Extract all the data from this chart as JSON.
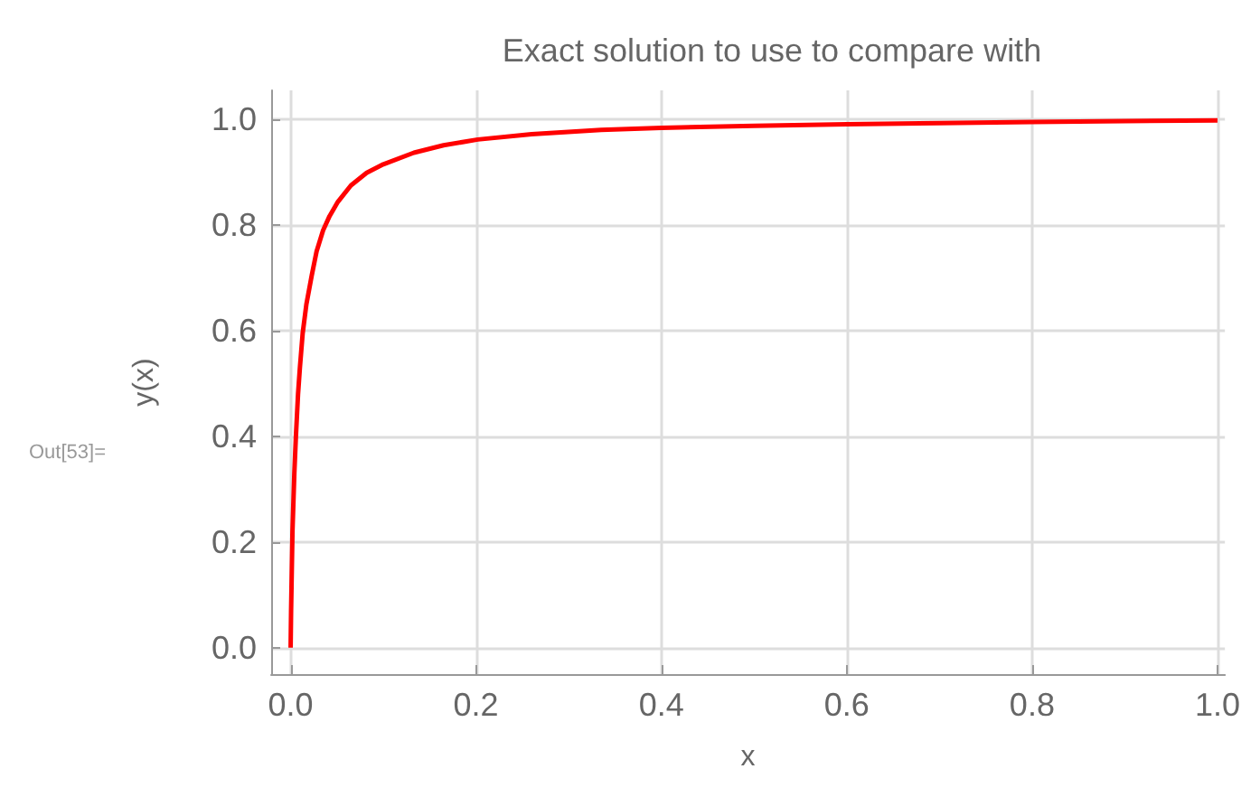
{
  "chart_data": {
    "type": "line",
    "title": "Exact solution to use to compare with",
    "xlabel": "x",
    "ylabel": "y(x)",
    "annotations": [
      "Out[53]="
    ],
    "x": [
      0,
      0.0005,
      0.001,
      0.002,
      0.004,
      0.0057,
      0.008,
      0.01,
      0.013,
      0.017,
      0.0227,
      0.028,
      0.035,
      0.042,
      0.051,
      0.065,
      0.082,
      0.1,
      0.133,
      0.165,
      0.202,
      0.26,
      0.335,
      0.4,
      0.5,
      0.6,
      0.7,
      0.8,
      0.9,
      1.0
    ],
    "series": [
      {
        "color": "#ff0000",
        "values": [
          0,
          0.07,
          0.12,
          0.22,
          0.33,
          0.4,
          0.48,
          0.53,
          0.595,
          0.65,
          0.704,
          0.75,
          0.79,
          0.817,
          0.844,
          0.875,
          0.899,
          0.915,
          0.937,
          0.951,
          0.962,
          0.972,
          0.98,
          0.984,
          0.988,
          0.991,
          0.993,
          0.995,
          0.997,
          0.998
        ]
      }
    ],
    "xlim": [
      -0.021,
      1.008
    ],
    "ylim": [
      -0.05,
      1.055
    ],
    "xticks": [
      {
        "value": 0,
        "label": "0.0"
      },
      {
        "value": 0.2,
        "label": "0.2"
      },
      {
        "value": 0.4,
        "label": "0.4"
      },
      {
        "value": 0.6,
        "label": "0.6"
      },
      {
        "value": 0.8,
        "label": "0.8"
      },
      {
        "value": 1,
        "label": "1.0"
      }
    ],
    "yticks": [
      {
        "value": 0,
        "label": "0.0"
      },
      {
        "value": 0.2,
        "label": "0.2"
      },
      {
        "value": 0.4,
        "label": "0.4"
      },
      {
        "value": 0.6,
        "label": "0.6"
      },
      {
        "value": 0.8,
        "label": "0.8"
      },
      {
        "value": 1,
        "label": "1.0"
      }
    ],
    "grid": true,
    "marker": "none",
    "line_style": "solid"
  }
}
